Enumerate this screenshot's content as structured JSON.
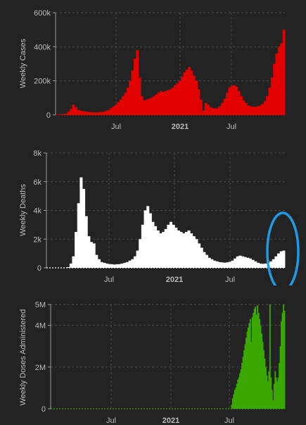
{
  "colors": {
    "background": "#232323",
    "grid": "#4a4a4a",
    "text": "#bdbdbd",
    "axis": "#9a9a9a",
    "highlight_circle": "#1e9be6"
  },
  "chart_data": [
    {
      "type": "bar",
      "ylabel": "Weekly Cases",
      "color": "#e30000",
      "ylim": [
        0,
        600000
      ],
      "y_ticks": [
        0,
        200000,
        400000,
        600000
      ],
      "y_tick_labels": [
        "0",
        "200k",
        "400k",
        "600k"
      ],
      "x_tick_labels": [
        "Jul",
        "2021",
        "Jul"
      ],
      "grid": true,
      "values": [
        500,
        1500,
        3000,
        5000,
        8000,
        20000,
        35000,
        60000,
        45000,
        30000,
        25000,
        22000,
        20000,
        18000,
        16000,
        15000,
        15000,
        15000,
        16000,
        17000,
        20000,
        25000,
        30000,
        40000,
        50000,
        60000,
        75000,
        90000,
        110000,
        130000,
        160000,
        200000,
        260000,
        330000,
        380000,
        220000,
        110000,
        85000,
        90000,
        95000,
        100000,
        110000,
        120000,
        130000,
        140000,
        135000,
        140000,
        145000,
        150000,
        160000,
        175000,
        185000,
        200000,
        225000,
        250000,
        265000,
        280000,
        260000,
        230000,
        200000,
        150000,
        90000,
        25000,
        70000,
        60000,
        45000,
        40000,
        38000,
        40000,
        50000,
        70000,
        95000,
        130000,
        160000,
        170000,
        175000,
        165000,
        140000,
        110000,
        85000,
        70000,
        55000,
        50000,
        48000,
        47000,
        50000,
        55000,
        65000,
        80000,
        110000,
        160000,
        220000,
        300000,
        360000,
        400000,
        420000,
        500000
      ]
    },
    {
      "type": "bar",
      "ylabel": "Weekly Deaths",
      "color": "#ffffff",
      "ylim": [
        0,
        8000
      ],
      "y_ticks": [
        0,
        2000,
        4000,
        6000,
        8000
      ],
      "y_tick_labels": [
        "0",
        "2k",
        "4k",
        "6k",
        "8k"
      ],
      "x_tick_labels": [
        "Jul",
        "2021",
        "Jul"
      ],
      "grid": true,
      "values": [
        0,
        0,
        0,
        0,
        0,
        0,
        0,
        0,
        50,
        300,
        800,
        2500,
        4500,
        6300,
        5500,
        3600,
        2200,
        1800,
        1700,
        900,
        600,
        400,
        350,
        300,
        260,
        250,
        230,
        250,
        260,
        300,
        350,
        400,
        500,
        600,
        800,
        1200,
        2000,
        3000,
        4000,
        4300,
        3800,
        3200,
        2900,
        2600,
        2400,
        2500,
        2700,
        3000,
        3200,
        3000,
        2800,
        2600,
        2500,
        2400,
        2500,
        2600,
        2400,
        2200,
        2000,
        1700,
        1400,
        1100,
        900,
        700,
        600,
        500,
        450,
        400,
        380,
        360,
        380,
        420,
        500,
        650,
        800,
        850,
        800,
        750,
        700,
        650,
        550,
        450,
        350,
        300,
        280,
        300,
        350,
        450,
        600,
        800,
        1000,
        1150,
        1200
      ]
    },
    {
      "type": "bar",
      "ylabel": "Weekly Doses Administered",
      "color": "#3aa800",
      "ylim": [
        0,
        5000000
      ],
      "y_ticks": [
        0,
        2000000,
        4000000,
        5000000
      ],
      "y_tick_labels": [
        "0",
        "2M",
        "4M",
        "5M"
      ],
      "x_tick_labels": [
        "Jul",
        "2021",
        "Jul"
      ],
      "grid": true,
      "values": [
        0,
        0,
        0,
        0,
        0,
        0,
        0,
        0,
        0,
        0,
        0,
        0,
        0,
        0,
        0,
        0,
        0,
        0,
        0,
        0,
        0,
        0,
        0,
        0,
        0,
        0,
        0,
        0,
        0,
        0,
        0,
        0,
        0,
        0,
        0,
        0,
        0,
        0,
        0,
        0,
        0,
        0,
        0,
        0,
        0,
        0,
        0,
        0,
        0,
        0,
        0,
        0,
        0,
        0,
        0,
        0,
        0,
        0,
        0,
        0,
        0,
        0,
        0,
        0,
        0,
        0,
        0,
        0,
        0,
        0,
        0,
        0,
        0,
        0,
        0,
        0,
        0,
        0,
        0,
        0,
        0,
        0,
        0,
        0,
        0,
        0,
        0,
        0,
        0,
        0,
        0,
        0,
        0,
        0,
        0,
        0,
        0,
        0,
        0,
        0,
        0,
        0,
        0,
        0,
        0,
        0,
        0,
        0,
        0,
        0,
        0,
        0,
        0,
        0,
        0,
        0,
        0,
        0,
        0,
        0,
        0,
        0,
        0,
        0,
        0,
        0,
        0,
        0,
        0,
        0,
        0,
        0,
        0,
        0,
        0,
        0,
        0,
        0,
        0,
        0,
        0,
        0,
        0,
        0,
        0,
        0,
        0,
        0,
        0,
        0,
        0,
        0,
        0,
        0,
        0,
        0,
        0,
        0,
        0,
        0,
        0,
        0,
        0,
        0,
        0,
        0,
        0,
        0,
        0,
        0,
        0,
        0,
        0,
        0,
        200000,
        500000,
        700000,
        900000,
        1000000,
        1200000,
        1400000,
        1500000,
        1700000,
        1900000,
        2200000,
        2500000,
        2800000,
        3100000,
        3400000,
        3700000,
        3900000,
        4100000,
        4300000,
        3200000,
        4400000,
        4600000,
        4800000,
        4900000,
        4500000,
        4950000,
        4600000,
        4300000,
        4000000,
        3600000,
        3200000,
        2800000,
        2400000,
        2000000,
        1600000,
        1300000,
        1800000,
        5000000,
        1500000,
        900000,
        400000,
        1200000,
        1800000,
        1500000,
        1300000,
        1500000,
        2200000,
        3000000,
        4200000,
        4600000,
        5000000,
        4700000
      ]
    }
  ]
}
